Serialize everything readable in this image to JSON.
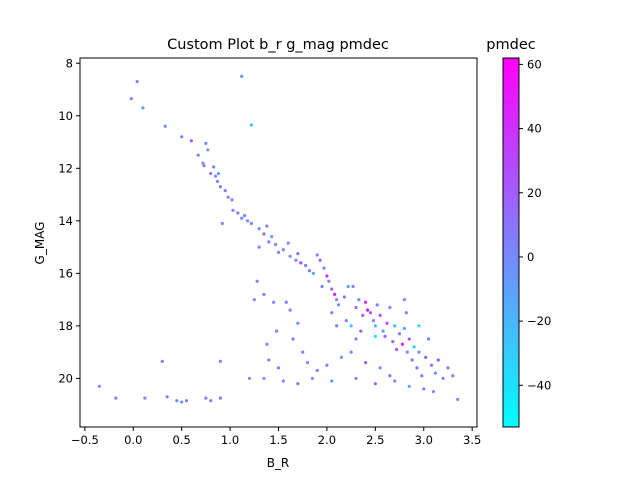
{
  "chart_data": {
    "type": "scatter",
    "title": "Custom Plot b_r g_mag pmdec",
    "xlabel": "B_R",
    "ylabel": "G_MAG",
    "colorbar_label": "pmdec",
    "xlim": [
      -0.55,
      3.55
    ],
    "ylim": [
      21.85,
      7.8
    ],
    "y_inverted": true,
    "x_ticks": [
      -0.5,
      0.0,
      0.5,
      1.0,
      1.5,
      2.0,
      2.5,
      3.0,
      3.5
    ],
    "y_ticks": [
      8,
      10,
      12,
      14,
      16,
      18,
      20
    ],
    "colorbar_range": [
      -53,
      62
    ],
    "colorbar_ticks": [
      -40,
      -20,
      0,
      20,
      40,
      60
    ],
    "colormap": "cool",
    "colormap_colors": [
      "#00ffff",
      "#ff00ff"
    ],
    "points": [
      {
        "x": 1.12,
        "y": 8.5,
        "c": -5
      },
      {
        "x": 0.04,
        "y": 8.7,
        "c": 0
      },
      {
        "x": -0.02,
        "y": 9.35,
        "c": 2
      },
      {
        "x": 0.1,
        "y": 9.7,
        "c": -10
      },
      {
        "x": 1.22,
        "y": 10.35,
        "c": -30
      },
      {
        "x": 0.33,
        "y": 10.4,
        "c": -5
      },
      {
        "x": 0.5,
        "y": 10.8,
        "c": 5
      },
      {
        "x": 0.6,
        "y": 10.95,
        "c": 20
      },
      {
        "x": 0.75,
        "y": 11.05,
        "c": 0
      },
      {
        "x": 0.77,
        "y": 11.3,
        "c": -5
      },
      {
        "x": 0.67,
        "y": 11.5,
        "c": 3
      },
      {
        "x": 0.72,
        "y": 11.8,
        "c": -2
      },
      {
        "x": 0.73,
        "y": 11.9,
        "c": 5
      },
      {
        "x": 0.83,
        "y": 11.95,
        "c": 0
      },
      {
        "x": 0.8,
        "y": 12.2,
        "c": 10
      },
      {
        "x": 0.85,
        "y": 12.3,
        "c": 2
      },
      {
        "x": 0.88,
        "y": 12.2,
        "c": -3
      },
      {
        "x": 0.87,
        "y": 12.5,
        "c": 0
      },
      {
        "x": 0.9,
        "y": 12.7,
        "c": 5
      },
      {
        "x": 0.95,
        "y": 12.85,
        "c": 8
      },
      {
        "x": 0.98,
        "y": 13.1,
        "c": -2
      },
      {
        "x": 1.02,
        "y": 13.2,
        "c": 0
      },
      {
        "x": 1.03,
        "y": 13.6,
        "c": 3
      },
      {
        "x": 1.08,
        "y": 13.7,
        "c": 12
      },
      {
        "x": 1.12,
        "y": 13.9,
        "c": 0
      },
      {
        "x": 1.15,
        "y": 13.8,
        "c": 5
      },
      {
        "x": 1.18,
        "y": 14.0,
        "c": -3
      },
      {
        "x": 0.92,
        "y": 14.1,
        "c": 0
      },
      {
        "x": 1.22,
        "y": 14.1,
        "c": 2
      },
      {
        "x": 1.3,
        "y": 14.3,
        "c": 0
      },
      {
        "x": 1.35,
        "y": 14.5,
        "c": 15
      },
      {
        "x": 1.38,
        "y": 14.2,
        "c": 0
      },
      {
        "x": 1.4,
        "y": 14.8,
        "c": 5
      },
      {
        "x": 1.43,
        "y": 14.6,
        "c": -8
      },
      {
        "x": 1.47,
        "y": 14.9,
        "c": 3
      },
      {
        "x": 1.5,
        "y": 15.2,
        "c": 0
      },
      {
        "x": 1.55,
        "y": 15.1,
        "c": 2
      },
      {
        "x": 1.6,
        "y": 14.85,
        "c": -2
      },
      {
        "x": 1.62,
        "y": 15.35,
        "c": 4
      },
      {
        "x": 1.68,
        "y": 15.5,
        "c": 0
      },
      {
        "x": 1.7,
        "y": 15.25,
        "c": 12
      },
      {
        "x": 1.73,
        "y": 15.6,
        "c": 30
      },
      {
        "x": 1.78,
        "y": 15.7,
        "c": 0
      },
      {
        "x": 1.82,
        "y": 15.9,
        "c": 10
      },
      {
        "x": 1.86,
        "y": 16.0,
        "c": -15
      },
      {
        "x": 1.9,
        "y": 15.3,
        "c": 5
      },
      {
        "x": 1.93,
        "y": 15.5,
        "c": 20
      },
      {
        "x": 1.97,
        "y": 15.8,
        "c": 0
      },
      {
        "x": 2.0,
        "y": 16.1,
        "c": 40
      },
      {
        "x": 1.95,
        "y": 16.5,
        "c": 3
      },
      {
        "x": 2.02,
        "y": 16.3,
        "c": 0
      },
      {
        "x": 2.05,
        "y": 16.6,
        "c": 15
      },
      {
        "x": 2.08,
        "y": 16.8,
        "c": 50
      },
      {
        "x": 2.1,
        "y": 17.0,
        "c": 0
      },
      {
        "x": 2.12,
        "y": 17.2,
        "c": -5
      },
      {
        "x": 2.18,
        "y": 16.9,
        "c": 5
      },
      {
        "x": 2.22,
        "y": 16.5,
        "c": -10
      },
      {
        "x": 2.27,
        "y": 16.5,
        "c": 0
      },
      {
        "x": 2.3,
        "y": 17.3,
        "c": 10
      },
      {
        "x": 2.33,
        "y": 17.0,
        "c": 3
      },
      {
        "x": 2.37,
        "y": 17.6,
        "c": 15
      },
      {
        "x": 2.4,
        "y": 17.1,
        "c": 40
      },
      {
        "x": 2.42,
        "y": 17.4,
        "c": 55
      },
      {
        "x": 2.45,
        "y": 17.5,
        "c": 20
      },
      {
        "x": 2.48,
        "y": 17.8,
        "c": 0
      },
      {
        "x": 2.5,
        "y": 18.0,
        "c": -20
      },
      {
        "x": 2.52,
        "y": 17.2,
        "c": 5
      },
      {
        "x": 2.55,
        "y": 17.6,
        "c": 25
      },
      {
        "x": 2.58,
        "y": 18.2,
        "c": -10
      },
      {
        "x": 2.6,
        "y": 18.4,
        "c": 15
      },
      {
        "x": 2.62,
        "y": 17.9,
        "c": 30
      },
      {
        "x": 2.65,
        "y": 17.3,
        "c": 0
      },
      {
        "x": 2.68,
        "y": 18.6,
        "c": 10
      },
      {
        "x": 2.7,
        "y": 18.0,
        "c": -25
      },
      {
        "x": 2.72,
        "y": 18.9,
        "c": 20
      },
      {
        "x": 2.75,
        "y": 18.3,
        "c": 5
      },
      {
        "x": 2.78,
        "y": 18.7,
        "c": 45
      },
      {
        "x": 2.8,
        "y": 18.1,
        "c": -15
      },
      {
        "x": 2.83,
        "y": 19.0,
        "c": 0
      },
      {
        "x": 2.85,
        "y": 18.5,
        "c": 25
      },
      {
        "x": 2.88,
        "y": 19.3,
        "c": 10
      },
      {
        "x": 2.9,
        "y": 18.8,
        "c": -30
      },
      {
        "x": 2.93,
        "y": 19.6,
        "c": 15
      },
      {
        "x": 2.95,
        "y": 19.0,
        "c": 0
      },
      {
        "x": 2.98,
        "y": 19.9,
        "c": 5
      },
      {
        "x": 3.02,
        "y": 19.2,
        "c": 20
      },
      {
        "x": 3.05,
        "y": 18.5,
        "c": 0
      },
      {
        "x": 3.08,
        "y": 19.5,
        "c": 10
      },
      {
        "x": 3.12,
        "y": 19.8,
        "c": -5
      },
      {
        "x": 3.15,
        "y": 19.3,
        "c": 25
      },
      {
        "x": 3.2,
        "y": 20.0,
        "c": 0
      },
      {
        "x": 3.25,
        "y": 19.6,
        "c": 15
      },
      {
        "x": 3.3,
        "y": 19.9,
        "c": 5
      },
      {
        "x": 3.35,
        "y": 20.8,
        "c": 0
      },
      {
        "x": 2.82,
        "y": 17.5,
        "c": 3
      },
      {
        "x": 2.8,
        "y": 17.0,
        "c": 0
      },
      {
        "x": 2.95,
        "y": 18.0,
        "c": -35
      },
      {
        "x": 2.5,
        "y": 18.4,
        "c": -40
      },
      {
        "x": 2.3,
        "y": 18.5,
        "c": 0
      },
      {
        "x": 2.35,
        "y": 18.2,
        "c": 20
      },
      {
        "x": 2.2,
        "y": 17.8,
        "c": 0
      },
      {
        "x": 2.25,
        "y": 18.0,
        "c": -30
      },
      {
        "x": 2.1,
        "y": 18.0,
        "c": 5
      },
      {
        "x": 2.05,
        "y": 17.5,
        "c": 0
      },
      {
        "x": 1.3,
        "y": 15.0,
        "c": 2
      },
      {
        "x": 1.28,
        "y": 16.3,
        "c": 0
      },
      {
        "x": 1.35,
        "y": 16.8,
        "c": 5
      },
      {
        "x": 1.25,
        "y": 17.0,
        "c": -2
      },
      {
        "x": 1.45,
        "y": 17.1,
        "c": 0
      },
      {
        "x": 1.58,
        "y": 17.1,
        "c": 5
      },
      {
        "x": 1.62,
        "y": 17.4,
        "c": 0
      },
      {
        "x": 1.7,
        "y": 17.9,
        "c": -3
      },
      {
        "x": 1.48,
        "y": 18.2,
        "c": 2
      },
      {
        "x": 1.38,
        "y": 18.7,
        "c": 0
      },
      {
        "x": 1.4,
        "y": 19.3,
        "c": 5
      },
      {
        "x": 1.5,
        "y": 19.6,
        "c": 0
      },
      {
        "x": 1.65,
        "y": 18.5,
        "c": 10
      },
      {
        "x": 1.75,
        "y": 19.0,
        "c": 0
      },
      {
        "x": 1.8,
        "y": 19.4,
        "c": -5
      },
      {
        "x": 1.9,
        "y": 19.7,
        "c": 0
      },
      {
        "x": 2.0,
        "y": 19.5,
        "c": 5
      },
      {
        "x": 2.15,
        "y": 19.2,
        "c": -10
      },
      {
        "x": 2.25,
        "y": 19.0,
        "c": 0
      },
      {
        "x": 2.4,
        "y": 19.4,
        "c": 20
      },
      {
        "x": 2.55,
        "y": 19.6,
        "c": 0
      },
      {
        "x": 2.65,
        "y": 19.9,
        "c": 10
      },
      {
        "x": 0.3,
        "y": 19.35,
        "c": 5
      },
      {
        "x": 0.9,
        "y": 19.35,
        "c": 0
      },
      {
        "x": -0.35,
        "y": 20.3,
        "c": 0
      },
      {
        "x": -0.18,
        "y": 20.75,
        "c": 3
      },
      {
        "x": 0.12,
        "y": 20.75,
        "c": 0
      },
      {
        "x": 0.35,
        "y": 20.7,
        "c": 5
      },
      {
        "x": 0.45,
        "y": 20.85,
        "c": 0
      },
      {
        "x": 0.5,
        "y": 20.9,
        "c": -2
      },
      {
        "x": 0.55,
        "y": 20.85,
        "c": 0
      },
      {
        "x": 0.75,
        "y": 20.75,
        "c": 3
      },
      {
        "x": 0.8,
        "y": 20.85,
        "c": 0
      },
      {
        "x": 0.9,
        "y": 20.75,
        "c": 5
      },
      {
        "x": 1.2,
        "y": 20.0,
        "c": 0
      },
      {
        "x": 1.35,
        "y": 20.0,
        "c": -5
      },
      {
        "x": 1.55,
        "y": 20.1,
        "c": 0
      },
      {
        "x": 1.7,
        "y": 20.2,
        "c": 10
      },
      {
        "x": 1.85,
        "y": 20.0,
        "c": 0
      },
      {
        "x": 2.05,
        "y": 20.1,
        "c": -5
      },
      {
        "x": 2.3,
        "y": 20.0,
        "c": 0
      },
      {
        "x": 2.5,
        "y": 20.2,
        "c": 15
      },
      {
        "x": 2.7,
        "y": 20.1,
        "c": 0
      },
      {
        "x": 2.85,
        "y": 20.3,
        "c": -10
      },
      {
        "x": 3.0,
        "y": 20.4,
        "c": 5
      },
      {
        "x": 3.1,
        "y": 20.5,
        "c": 0
      }
    ]
  }
}
